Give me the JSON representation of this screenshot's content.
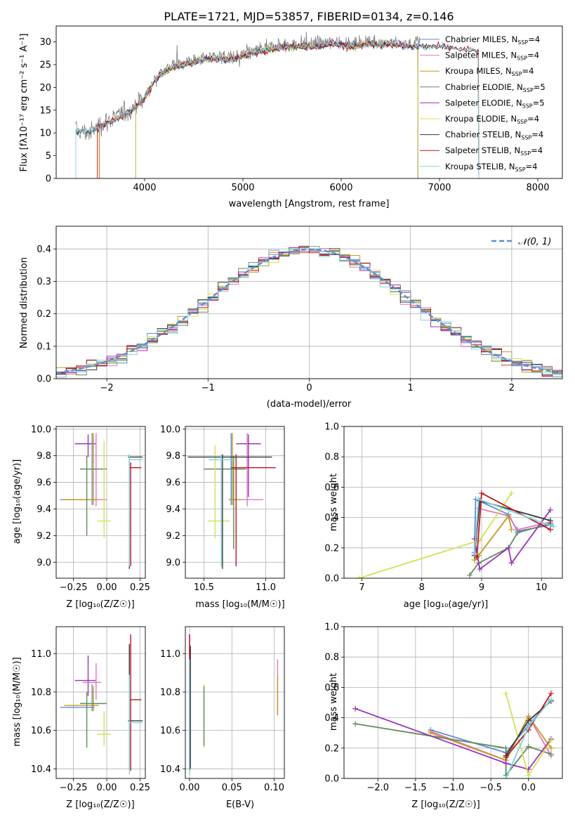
{
  "chart_data": [
    {
      "id": "spectrum",
      "type": "line",
      "title": "PLATE=1721, MJD=53857, FIBERID=0134, z=0.146",
      "xlabel": "wavelength [Angstrom, rest frame]",
      "ylabel": "Flux [fλ10⁻¹⁷ erg cm⁻² s⁻¹ A⁻¹]",
      "xlim": [
        3100,
        8250
      ],
      "ylim": [
        0,
        33.5
      ],
      "xticks": [
        4000,
        5000,
        6000,
        7000,
        8000
      ],
      "yticks": [
        0,
        5,
        10,
        15,
        20,
        25,
        30
      ],
      "grid": false,
      "legend": "top-right",
      "data_envelope": {
        "x": [
          3300,
          3450,
          3550,
          3700,
          3850,
          4000,
          4100,
          4200,
          4300,
          4500,
          4700,
          4900,
          5100,
          5300,
          5500,
          5700,
          5900,
          6100,
          6300,
          6500,
          6700,
          6800
        ],
        "y": [
          10.5,
          10,
          12,
          13.5,
          15,
          18,
          22,
          24,
          25,
          26,
          27,
          26.5,
          28,
          29,
          29.5,
          29.5,
          30,
          29.5,
          30,
          30,
          29.5,
          30
        ]
      },
      "model_envelope": {
        "x": [
          3300,
          3450,
          3550,
          3700,
          3850,
          4000,
          4100,
          4200,
          4300,
          4500,
          4700,
          4900,
          5100,
          5300,
          5500,
          5700,
          5900,
          6100,
          6300,
          6500,
          6700,
          7000,
          7200,
          7400
        ],
        "y": [
          10.5,
          10.2,
          11.5,
          13,
          14.5,
          17.5,
          21.5,
          23.5,
          24.5,
          25.5,
          26.5,
          26,
          27.5,
          28.5,
          29,
          29,
          29.5,
          29,
          29.5,
          29.5,
          29,
          29,
          28.5,
          28
        ]
      },
      "series": [
        {
          "name": "Chabrier MILES, N_SSP=4",
          "color": "#5b8fd4",
          "start": 3540,
          "end": 6780
        },
        {
          "name": "Salpeter MILES, N_SSP=4",
          "color": "#e377c2",
          "start": 3540,
          "end": 6780
        },
        {
          "name": "Kroupa MILES, N_SSP=4",
          "color": "#c59a1e",
          "start": 3540,
          "end": 6780
        },
        {
          "name": "Chabrier ELODIE, N_SSP=5",
          "color": "#5e8c5a",
          "start": 3910,
          "end": 6780
        },
        {
          "name": "Salpeter ELODIE, N_SSP=5",
          "color": "#9a33b8",
          "start": 3910,
          "end": 6780
        },
        {
          "name": "Kroupa ELODIE, N_SSP=4",
          "color": "#d4e157",
          "start": 3910,
          "end": 6780
        },
        {
          "name": "Chabrier STELIB, N_SSP=4",
          "color": "#3a3a3a",
          "start": 3300,
          "end": 7400
        },
        {
          "name": "Salpeter STELIB, N_SSP=4",
          "color": "#c0141c",
          "start": 3520,
          "end": 7400
        },
        {
          "name": "Kroupa STELIB, N_SSP=4",
          "color": "#80d4e0",
          "start": 3300,
          "end": 7400
        }
      ]
    },
    {
      "id": "residuals",
      "type": "histogram",
      "xlabel": "(data-model)/error",
      "ylabel": "Normed distribution",
      "xlim": [
        -2.5,
        2.5
      ],
      "ylim": [
        0,
        0.47
      ],
      "xticks": [
        -2,
        -1,
        0,
        1,
        2
      ],
      "yticks": [
        0.0,
        0.1,
        0.2,
        0.3,
        0.4
      ],
      "grid": true,
      "reference": {
        "name": "𝒩(0, 1)",
        "color": "#5b8fd4",
        "style": "dashed",
        "mu": 0,
        "sigma": 1
      }
    },
    {
      "id": "age-vs-Z",
      "type": "errorbar",
      "xlabel": "Z [log₁₀(Z/Z☉)]",
      "ylabel": "age  [log₁₀(age/yr)]",
      "xlim": [
        -0.38,
        0.29
      ],
      "ylim": [
        8.88,
        10.02
      ],
      "xticks": [
        -0.25,
        0.0,
        0.25
      ],
      "yticks": [
        9.0,
        9.2,
        9.4,
        9.6,
        9.8,
        10.0
      ],
      "grid": true,
      "points": [
        {
          "color": "#9a33b8",
          "x": -0.14,
          "xerr": [
            0.1,
            0.06
          ],
          "y": 9.89,
          "yerr": [
            0.1,
            0.07
          ]
        },
        {
          "color": "#e377c2",
          "x": -0.08,
          "xerr": [
            0.2,
            0.08
          ],
          "y": 9.47,
          "yerr": [
            0.05,
            0.5
          ]
        },
        {
          "color": "#5b8fd4",
          "x": -0.11,
          "xerr": [
            0.24,
            0.02
          ],
          "y": 9.47,
          "yerr": [
            0.04,
            0.5
          ]
        },
        {
          "color": "#c59a1e",
          "x": -0.1,
          "xerr": [
            0.22,
            0.04
          ],
          "y": 9.47,
          "yerr": [
            0.04,
            0.5
          ]
        },
        {
          "color": "#5e8c5a",
          "x": -0.15,
          "xerr": [
            0.05,
            0.15
          ],
          "y": 9.7,
          "yerr": [
            0.5,
            0.1
          ]
        },
        {
          "color": "#d4e157",
          "x": -0.02,
          "xerr": [
            0.05,
            0.05
          ],
          "y": 9.31,
          "yerr": [
            0.13,
            0.6
          ]
        },
        {
          "color": "#3a3a3a",
          "x": 0.17,
          "xerr": [
            0.01,
            0.1
          ],
          "y": 9.79,
          "yerr": [
            0.84,
            0.02
          ]
        },
        {
          "color": "#c0141c",
          "x": 0.18,
          "xerr": [
            0.01,
            0.08
          ],
          "y": 9.71,
          "yerr": [
            0.74,
            0.04
          ]
        },
        {
          "color": "#80d4e0",
          "x": 0.17,
          "xerr": [
            0.0,
            0.1
          ],
          "y": 9.77,
          "yerr": [
            0.8,
            0.04
          ]
        }
      ]
    },
    {
      "id": "age-vs-mass",
      "type": "errorbar",
      "xlabel": "mass [log₁₀(M/M☉)]",
      "ylabel": "",
      "xlim": [
        10.35,
        11.15
      ],
      "ylim": [
        8.88,
        10.02
      ],
      "xticks": [
        10.5,
        11.0
      ],
      "yticks": [
        9.0,
        9.2,
        9.4,
        9.6,
        9.8,
        10.0
      ],
      "grid": true,
      "points": [
        {
          "color": "#9a33b8",
          "x": 10.86,
          "xerr": [
            0.1,
            0.1
          ],
          "y": 9.89,
          "yerr": [
            0.4,
            0.07
          ]
        },
        {
          "color": "#e377c2",
          "x": 10.85,
          "xerr": [
            0.1,
            0.13
          ],
          "y": 9.47,
          "yerr": [
            0.05,
            0.5
          ]
        },
        {
          "color": "#5b8fd4",
          "x": 10.72,
          "xerr": [
            0.02,
            0.08
          ],
          "y": 9.47,
          "yerr": [
            0.04,
            0.5
          ]
        },
        {
          "color": "#c59a1e",
          "x": 10.73,
          "xerr": [
            0.03,
            0.08
          ],
          "y": 9.47,
          "yerr": [
            0.04,
            0.5
          ]
        },
        {
          "color": "#5e8c5a",
          "x": 10.74,
          "xerr": [
            0.24,
            0.1
          ],
          "y": 9.7,
          "yerr": [
            0.6,
            0.1
          ]
        },
        {
          "color": "#d4e157",
          "x": 10.59,
          "xerr": [
            0.06,
            0.12
          ],
          "y": 9.31,
          "yerr": [
            0.13,
            0.57
          ]
        },
        {
          "color": "#3a3a3a",
          "x": 10.65,
          "xerr": [
            0.28,
            0.4
          ],
          "y": 9.79,
          "yerr": [
            0.84,
            0.02
          ]
        },
        {
          "color": "#c0141c",
          "x": 10.76,
          "xerr": [
            0.04,
            0.32
          ],
          "y": 9.71,
          "yerr": [
            0.74,
            0.1
          ]
        },
        {
          "color": "#80d4e0",
          "x": 10.64,
          "xerr": [
            0.1,
            0.12
          ],
          "y": 9.77,
          "yerr": [
            0.8,
            0.04
          ]
        }
      ]
    },
    {
      "id": "weight-vs-age",
      "type": "line",
      "xlabel": "age  [log₁₀(age/yr)]",
      "ylabel": "mass weight",
      "xlim": [
        6.7,
        10.35
      ],
      "ylim": [
        0,
        1
      ],
      "xticks": [
        7,
        8,
        9,
        10
      ],
      "yticks": [
        0.0,
        0.2,
        0.4,
        0.6,
        0.8,
        1.0
      ],
      "grid": true,
      "series": [
        {
          "color": "#5b8fd4",
          "x": [
            8.88,
            8.9,
            9.45,
            9.6,
            10.15
          ],
          "y": [
            0.17,
            0.52,
            0.42,
            0.31,
            0.35
          ]
        },
        {
          "color": "#e377c2",
          "x": [
            8.88,
            8.95,
            9.45,
            9.6,
            10.15
          ],
          "y": [
            0.12,
            0.46,
            0.41,
            0.32,
            0.37
          ]
        },
        {
          "color": "#c59a1e",
          "x": [
            8.88,
            8.95,
            9.45,
            9.5
          ],
          "y": [
            0.12,
            0.15,
            0.41,
            0.32
          ]
        },
        {
          "color": "#5e8c5a",
          "x": [
            8.8,
            8.95,
            9.45,
            9.6,
            10.15
          ],
          "y": [
            0.02,
            0.1,
            0.2,
            0.3,
            0.36
          ]
        },
        {
          "color": "#9a33b8",
          "x": [
            8.88,
            8.97,
            9.45,
            9.5,
            10.15
          ],
          "y": [
            0.26,
            0.06,
            0.2,
            0.1,
            0.45
          ]
        },
        {
          "color": "#d4e157",
          "x": [
            6.95,
            8.97,
            9.5
          ],
          "y": [
            0.0,
            0.25,
            0.56
          ]
        },
        {
          "color": "#3a3a3a",
          "x": [
            8.88,
            8.97,
            10.15
          ],
          "y": [
            0.15,
            0.51,
            0.38
          ]
        },
        {
          "color": "#c0141c",
          "x": [
            8.92,
            9.0,
            10.15
          ],
          "y": [
            0.14,
            0.56,
            0.32
          ]
        },
        {
          "color": "#80d4e0",
          "x": [
            8.88,
            8.95,
            10.2
          ],
          "y": [
            0.16,
            0.52,
            0.34
          ]
        }
      ]
    },
    {
      "id": "mass-vs-Z",
      "type": "errorbar",
      "xlabel": "Z [log₁₀(Z/Z☉)]",
      "ylabel": "mass [log₁₀(M/M☉)]",
      "xlim": [
        -0.38,
        0.29
      ],
      "ylim": [
        10.35,
        11.14
      ],
      "xticks": [
        -0.25,
        0.0,
        0.25
      ],
      "yticks": [
        10.4,
        10.6,
        10.8,
        11.0
      ],
      "grid": true,
      "points": [
        {
          "color": "#9a33b8",
          "x": -0.14,
          "xerr": [
            0.1,
            0.06
          ],
          "y": 10.86,
          "yerr": [
            0.08,
            0.13
          ]
        },
        {
          "color": "#e377c2",
          "x": -0.08,
          "xerr": [
            0.1,
            0.04
          ],
          "y": 10.85,
          "yerr": [
            0.09,
            0.1
          ]
        },
        {
          "color": "#5b8fd4",
          "x": -0.11,
          "xerr": [
            0.24,
            0.02
          ],
          "y": 10.72,
          "yerr": [
            0.02,
            0.12
          ]
        },
        {
          "color": "#c59a1e",
          "x": -0.1,
          "xerr": [
            0.22,
            0.04
          ],
          "y": 10.73,
          "yerr": [
            0.03,
            0.1
          ]
        },
        {
          "color": "#5e8c5a",
          "x": -0.15,
          "xerr": [
            0.05,
            0.15
          ],
          "y": 10.74,
          "yerr": [
            0.23,
            0.06
          ]
        },
        {
          "color": "#d4e157",
          "x": -0.02,
          "xerr": [
            0.05,
            0.05
          ],
          "y": 10.58,
          "yerr": [
            0.06,
            0.12
          ]
        },
        {
          "color": "#3a3a3a",
          "x": 0.17,
          "xerr": [
            0.01,
            0.1
          ],
          "y": 10.65,
          "yerr": [
            0.25,
            0.4
          ]
        },
        {
          "color": "#c0141c",
          "x": 0.18,
          "xerr": [
            0.01,
            0.08
          ],
          "y": 10.76,
          "yerr": [
            0.37,
            0.34
          ]
        },
        {
          "color": "#80d4e0",
          "x": 0.17,
          "xerr": [
            0.0,
            0.1
          ],
          "y": 10.64,
          "yerr": [
            0.27,
            0.25
          ]
        }
      ]
    },
    {
      "id": "mass-vs-ebv",
      "type": "errorbar",
      "xlabel": "E(B-V)",
      "ylabel": "",
      "xlim": [
        -0.005,
        0.112
      ],
      "ylim": [
        10.35,
        11.14
      ],
      "xticks": [
        0.0,
        0.05,
        0.1
      ],
      "yticks": [
        10.4,
        10.6,
        10.8,
        11.0
      ],
      "grid": true,
      "points": [
        {
          "color": "#9a33b8",
          "x": 0.0,
          "xerr": [
            0,
            0
          ],
          "y": 10.72,
          "yerr": [
            0.33,
            0.38
          ]
        },
        {
          "color": "#c0141c",
          "x": 0.0,
          "xerr": [
            0,
            0
          ],
          "y": 10.72,
          "yerr": [
            0.33,
            0.38
          ]
        },
        {
          "color": "#80d4e0",
          "x": 0.0,
          "xerr": [
            0,
            0
          ],
          "y": 10.64,
          "yerr": [
            0.27,
            0.33
          ]
        },
        {
          "color": "#3a3a3a",
          "x": 0.001,
          "xerr": [
            0,
            0
          ],
          "y": 10.7,
          "yerr": [
            0.3,
            0.34
          ]
        },
        {
          "color": "#d4e157",
          "x": 0.017,
          "xerr": [
            0,
            0
          ],
          "y": 10.68,
          "yerr": [
            0.17,
            0.16
          ]
        },
        {
          "color": "#5e8c5a",
          "x": 0.017,
          "xerr": [
            0,
            0
          ],
          "y": 10.68,
          "yerr": [
            0.16,
            0.15
          ]
        },
        {
          "color": "#e377c2",
          "x": 0.104,
          "xerr": [
            0,
            0
          ],
          "y": 10.82,
          "yerr": [
            0.14,
            0.15
          ]
        },
        {
          "color": "#c59a1e",
          "x": 0.104,
          "xerr": [
            0,
            0
          ],
          "y": 10.78,
          "yerr": [
            0.1,
            0.1
          ]
        }
      ]
    },
    {
      "id": "weight-vs-Z",
      "type": "line",
      "xlabel": "Z [log₁₀(Z/Z☉)]",
      "ylabel": "mass weight",
      "xlim": [
        -2.45,
        0.45
      ],
      "ylim": [
        0,
        1
      ],
      "xticks": [
        -2.0,
        -1.5,
        -1.0,
        -0.5,
        0.0
      ],
      "yticks": [
        0.0,
        0.2,
        0.4,
        0.6,
        0.8,
        1.0
      ],
      "grid": true,
      "series": [
        {
          "color": "#5b8fd4",
          "x": [
            -1.3,
            -0.3,
            0.0,
            0.3
          ],
          "y": [
            0.32,
            0.17,
            0.35,
            0.52
          ]
        },
        {
          "color": "#e377c2",
          "x": [
            -1.3,
            -0.3,
            0.0,
            0.3
          ],
          "y": [
            0.31,
            0.12,
            0.41,
            0.15
          ]
        },
        {
          "color": "#c59a1e",
          "x": [
            -1.3,
            -0.3,
            0.0,
            0.3
          ],
          "y": [
            0.3,
            0.12,
            0.41,
            0.2
          ]
        },
        {
          "color": "#5e8c5a",
          "x": [
            -2.3,
            -0.3,
            -0.3,
            0.0,
            0.3
          ],
          "y": [
            0.36,
            0.2,
            0.02,
            0.21,
            0.16
          ]
        },
        {
          "color": "#9a33b8",
          "x": [
            -2.3,
            -0.3,
            0.0,
            0.3
          ],
          "y": [
            0.46,
            0.1,
            0.06,
            0.26
          ]
        },
        {
          "color": "#d4e157",
          "x": [
            -0.3,
            0.0,
            0.3
          ],
          "y": [
            0.56,
            0.02,
            0.25
          ]
        },
        {
          "color": "#3a3a3a",
          "x": [
            -0.3,
            0.0,
            0.3
          ],
          "y": [
            0.15,
            0.38,
            0.51
          ]
        },
        {
          "color": "#c0141c",
          "x": [
            -0.3,
            0.0,
            0.3
          ],
          "y": [
            0.14,
            0.32,
            0.56
          ]
        },
        {
          "color": "#80d4e0",
          "x": [
            -0.3,
            0.0,
            0.3
          ],
          "y": [
            0.0,
            0.34,
            0.52
          ]
        }
      ]
    }
  ]
}
